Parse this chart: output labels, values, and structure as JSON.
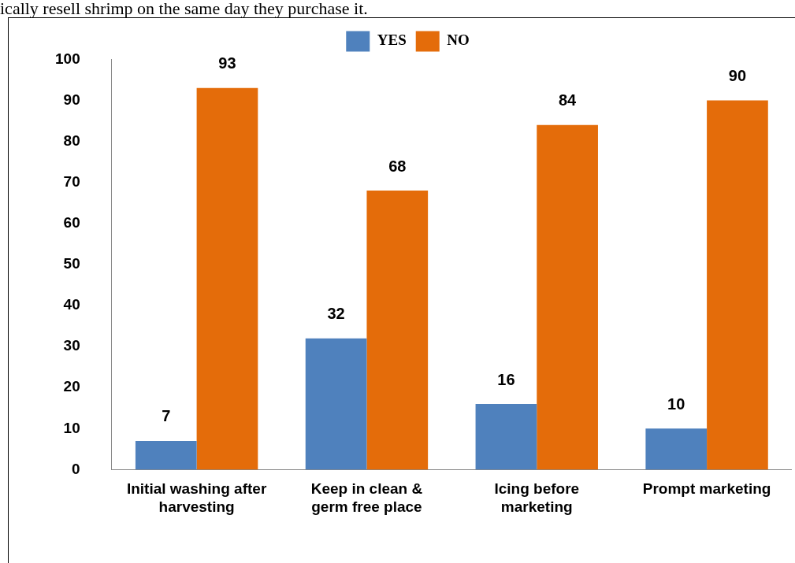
{
  "chart_data": {
    "type": "bar",
    "categories": [
      "Initial washing after harvesting",
      "Keep in clean & germ free place",
      "Icing before marketing",
      "Prompt marketing"
    ],
    "series": [
      {
        "name": "YES",
        "color": "#4f81bd",
        "values": [
          7,
          32,
          16,
          10
        ]
      },
      {
        "name": "NO",
        "color": "#e46c0a",
        "values": [
          93,
          68,
          84,
          90
        ]
      }
    ],
    "ylim": [
      0,
      100
    ],
    "yticks": [
      0,
      10,
      20,
      30,
      40,
      50,
      60,
      70,
      80,
      90,
      100
    ],
    "grid": false,
    "legend": "top",
    "data_labels": true,
    "annotations": [
      "ically resell shrimp on the same day they purchase it."
    ]
  }
}
